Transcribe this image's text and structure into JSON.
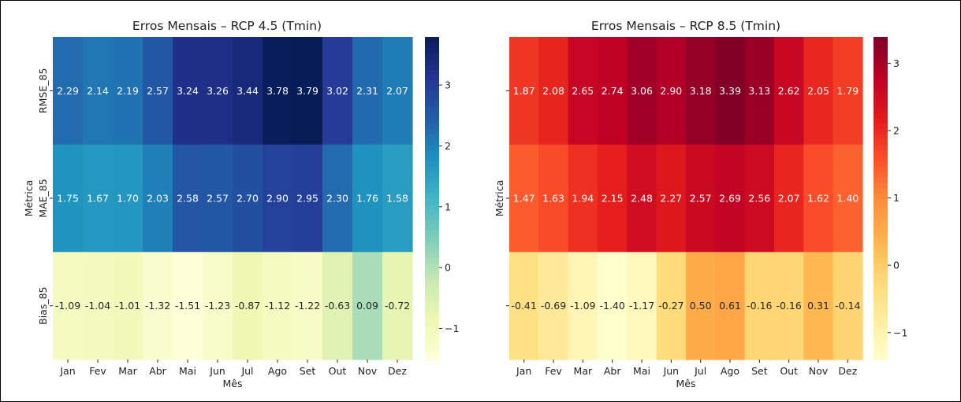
{
  "chart_data": [
    {
      "type": "heatmap",
      "title": "Erros Mensais – RCP 4.5 (Tmin)",
      "xlabel": "Mês",
      "ylabel": "Métrica",
      "colormap": "YlGnBu",
      "x_categories": [
        "Jan",
        "Fev",
        "Mar",
        "Abr",
        "Mai",
        "Jun",
        "Jul",
        "Ago",
        "Set",
        "Out",
        "Nov",
        "Dez"
      ],
      "y_categories": [
        "RMSE_85",
        "MAE_85",
        "Bias_85"
      ],
      "values": [
        [
          2.29,
          2.14,
          2.19,
          2.57,
          3.24,
          3.26,
          3.44,
          3.78,
          3.79,
          3.02,
          2.31,
          2.07
        ],
        [
          1.75,
          1.67,
          1.7,
          2.03,
          2.58,
          2.57,
          2.7,
          2.9,
          2.95,
          2.3,
          1.76,
          1.58
        ],
        [
          -1.09,
          -1.04,
          -1.01,
          -1.32,
          -1.51,
          -1.23,
          -0.87,
          -1.12,
          -1.22,
          -0.63,
          0.09,
          -0.72
        ]
      ],
      "colorbar": {
        "range": [
          -1.51,
          3.79
        ],
        "ticks": [
          -1,
          0,
          1,
          2,
          3
        ],
        "tick_labels": [
          "−1",
          "0",
          "1",
          "2",
          "3"
        ]
      }
    },
    {
      "type": "heatmap",
      "title": "Erros Mensais – RCP 8.5 (Tmin)",
      "xlabel": "Mês",
      "ylabel": "Métrica",
      "colormap": "YlOrRd",
      "x_categories": [
        "Jan",
        "Fev",
        "Mar",
        "Abr",
        "Mai",
        "Jun",
        "Jul",
        "Ago",
        "Set",
        "Out",
        "Nov",
        "Dez"
      ],
      "y_categories": [
        "",
        "",
        ""
      ],
      "values": [
        [
          1.87,
          2.08,
          2.65,
          2.74,
          3.06,
          2.9,
          3.18,
          3.39,
          3.13,
          2.62,
          2.05,
          1.79
        ],
        [
          1.47,
          1.63,
          1.94,
          2.15,
          2.48,
          2.27,
          2.57,
          2.69,
          2.56,
          2.07,
          1.62,
          1.4
        ],
        [
          -0.41,
          -0.69,
          -1.09,
          -1.4,
          -1.17,
          -0.27,
          0.5,
          0.61,
          -0.16,
          -0.16,
          0.31,
          -0.14
        ]
      ],
      "colorbar": {
        "range": [
          -1.4,
          3.39
        ],
        "ticks": [
          -1,
          0,
          1,
          2,
          3
        ],
        "tick_labels": [
          "−1",
          "0",
          "1",
          "2",
          "3"
        ]
      }
    }
  ]
}
